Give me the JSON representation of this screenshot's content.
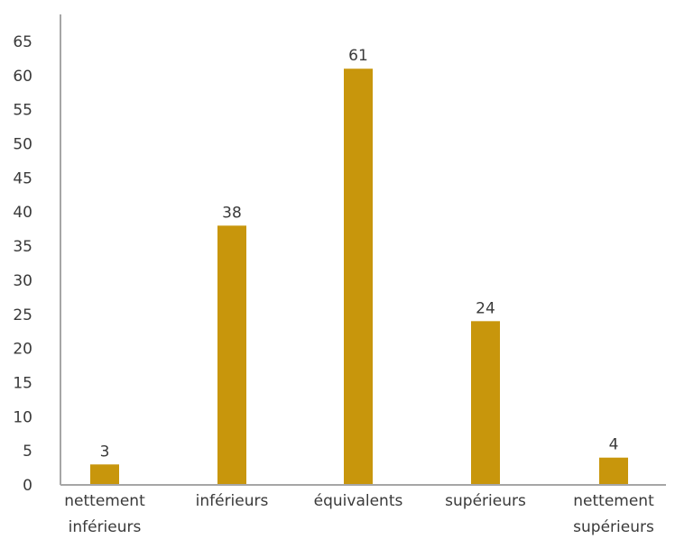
{
  "chart_data": {
    "type": "bar",
    "categories": [
      [
        "nettement",
        "inférieurs"
      ],
      [
        "inférieurs"
      ],
      [
        "équivalents"
      ],
      [
        "supérieurs"
      ],
      [
        "nettement",
        "supérieurs"
      ]
    ],
    "values": [
      3,
      38,
      61,
      24,
      4
    ],
    "data_labels": [
      "3",
      "38",
      "61",
      "24",
      "4"
    ],
    "title": "",
    "xlabel": "",
    "ylabel": "",
    "ylim": [
      0,
      65
    ],
    "y_ticks": [
      0,
      5,
      10,
      15,
      20,
      25,
      30,
      35,
      40,
      45,
      50,
      55,
      60,
      65
    ],
    "grid": false,
    "legend": "none",
    "colors": {
      "bar": "#c8960c",
      "axis": "#a6a6a6",
      "text": "#3a3a3a"
    }
  }
}
